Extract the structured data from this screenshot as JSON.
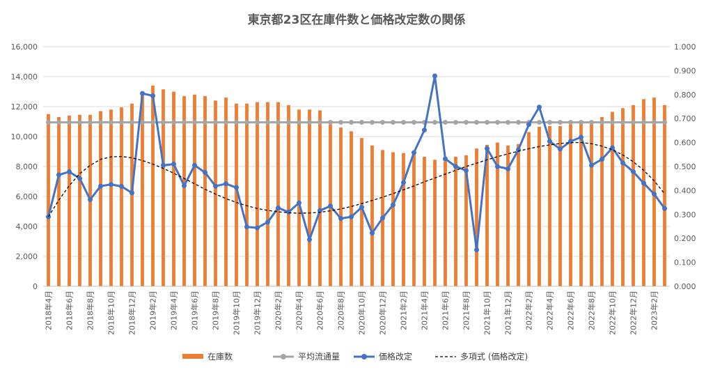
{
  "chart_data": {
    "type": "bar+line",
    "title": "東京都23区在庫件数と価格改定数の関係",
    "categories": [
      "2018年4月",
      "2018年5月",
      "2018年6月",
      "2018年7月",
      "2018年8月",
      "2018年9月",
      "2018年10月",
      "2018年11月",
      "2018年12月",
      "2019年1月",
      "2019年2月",
      "2019年3月",
      "2019年4月",
      "2019年5月",
      "2019年6月",
      "2019年7月",
      "2019年8月",
      "2019年9月",
      "2019年10月",
      "2019年11月",
      "2019年12月",
      "2020年1月",
      "2020年2月",
      "2020年3月",
      "2020年4月",
      "2020年5月",
      "2020年6月",
      "2020年7月",
      "2020年8月",
      "2020年9月",
      "2020年10月",
      "2020年11月",
      "2020年12月",
      "2021年1月",
      "2021年2月",
      "2021年3月",
      "2021年4月",
      "2021年5月",
      "2021年6月",
      "2021年7月",
      "2021年8月",
      "2021年9月",
      "2021年10月",
      "2021年11月",
      "2021年12月",
      "2022年1月",
      "2022年2月",
      "2022年3月",
      "2022年4月",
      "2022年5月",
      "2022年6月",
      "2022年7月",
      "2022年8月",
      "2022年9月",
      "2022年10月",
      "2022年11月",
      "2022年12月",
      "2023年1月",
      "2023年2月",
      "2023年3月"
    ],
    "xtick_labels": [
      "2018年4月",
      "2018年6月",
      "2018年8月",
      "2018年10月",
      "2018年12月",
      "2019年2月",
      "2019年4月",
      "2019年6月",
      "2019年8月",
      "2019年10月",
      "2019年12月",
      "2020年2月",
      "2020年4月",
      "2020年6月",
      "2020年8月",
      "2020年10月",
      "2020年12月",
      "2021年2月",
      "2021年4月",
      "2021年6月",
      "2021年8月",
      "2021年10月",
      "2021年12月",
      "2022年2月",
      "2022年4月",
      "2022年6月",
      "2022年8月",
      "2022年10月",
      "2022年12月",
      "2023年2月"
    ],
    "y_left": {
      "min": 0,
      "max": 16000,
      "ticks": [
        "0",
        "2,000",
        "4,000",
        "6,000",
        "8,000",
        "10,000",
        "12,000",
        "14,000",
        "16,000"
      ]
    },
    "y_right": {
      "min": 0,
      "max": 1.0,
      "ticks": [
        "0.000",
        "0.100",
        "0.200",
        "0.300",
        "0.400",
        "0.500",
        "0.600",
        "0.700",
        "0.800",
        "0.900",
        "1.000"
      ]
    },
    "grid": true,
    "legend_position": "bottom",
    "series": [
      {
        "name": "在庫数",
        "kind": "bar",
        "axis": "left",
        "color": "#ED7D31",
        "values": [
          11500,
          11300,
          11400,
          11450,
          11450,
          11700,
          11800,
          11950,
          12200,
          12800,
          13400,
          13150,
          13000,
          12700,
          12800,
          12700,
          12400,
          12600,
          12200,
          12200,
          12300,
          12300,
          12300,
          12100,
          11800,
          11800,
          11750,
          10800,
          10600,
          10350,
          9900,
          9400,
          9100,
          8950,
          8900,
          8800,
          8650,
          8450,
          8350,
          8650,
          8750,
          9200,
          9450,
          9600,
          9400,
          9500,
          10300,
          10650,
          10700,
          10700,
          10800,
          10900,
          11050,
          11300,
          11650,
          11900,
          12100,
          12500,
          12600,
          12100
        ]
      },
      {
        "name": "平均流通量",
        "kind": "line",
        "axis": "left",
        "color": "#A5A5A5",
        "values": [
          10950,
          10950,
          10950,
          10950,
          10950,
          10950,
          10950,
          10950,
          10950,
          10950,
          10950,
          10950,
          10950,
          10950,
          10950,
          10950,
          10950,
          10950,
          10950,
          10950,
          10950,
          10950,
          10950,
          10950,
          10950,
          10950,
          10950,
          10950,
          10950,
          10950,
          10950,
          10950,
          10950,
          10950,
          10950,
          10950,
          10950,
          10950,
          10950,
          10950,
          10950,
          10950,
          10950,
          10950,
          10950,
          10950,
          10950,
          10950,
          10950,
          10950,
          10950,
          10950,
          10950,
          10950,
          10950,
          10950,
          10950,
          10950,
          10950,
          10950
        ]
      },
      {
        "name": "価格改定",
        "kind": "line",
        "axis": "right",
        "color": "#4472C4",
        "values": [
          0.29,
          0.465,
          0.478,
          0.45,
          0.362,
          0.418,
          0.425,
          0.417,
          0.39,
          0.805,
          0.795,
          0.505,
          0.51,
          0.42,
          0.505,
          0.475,
          0.418,
          0.428,
          0.412,
          0.248,
          0.244,
          0.268,
          0.327,
          0.31,
          0.348,
          0.195,
          0.316,
          0.335,
          0.283,
          0.29,
          0.33,
          0.222,
          0.285,
          0.34,
          0.433,
          0.558,
          0.652,
          0.878,
          0.532,
          0.5,
          0.483,
          0.152,
          0.575,
          0.5,
          0.49,
          0.57,
          0.675,
          0.748,
          0.605,
          0.573,
          0.605,
          0.622,
          0.505,
          0.53,
          0.578,
          0.515,
          0.478,
          0.43,
          0.385,
          0.325
        ]
      },
      {
        "name": "多項式 (価格改定)",
        "kind": "trendline",
        "axis": "right",
        "color": "#000000",
        "values": [
          0.29,
          0.36,
          0.42,
          0.47,
          0.505,
          0.53,
          0.54,
          0.542,
          0.536,
          0.525,
          0.51,
          0.492,
          0.472,
          0.45,
          0.428,
          0.405,
          0.385,
          0.366,
          0.35,
          0.336,
          0.325,
          0.317,
          0.311,
          0.307,
          0.305,
          0.306,
          0.309,
          0.315,
          0.323,
          0.333,
          0.345,
          0.358,
          0.372,
          0.387,
          0.403,
          0.419,
          0.436,
          0.452,
          0.468,
          0.484,
          0.5,
          0.514,
          0.528,
          0.541,
          0.553,
          0.564,
          0.574,
          0.583,
          0.59,
          0.596,
          0.6,
          0.6,
          0.595,
          0.585,
          0.57,
          0.548,
          0.52,
          0.484,
          0.44,
          0.386
        ]
      }
    ]
  }
}
